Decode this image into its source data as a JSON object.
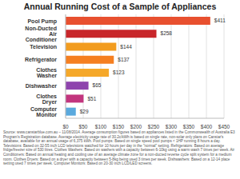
{
  "chart_data": {
    "type": "bar",
    "title": "Annual Running Cost of a Sample of Appliances",
    "orientation": "horizontal",
    "categories": [
      "Pool Pump",
      "Non-Ducted Air Conditioner",
      "Television",
      "Refrigerator",
      "Clothes Washer",
      "Dishwasher",
      "Clothes Dryer",
      "Computer Monitor"
    ],
    "values": [
      411,
      258,
      144,
      137,
      123,
      65,
      51,
      29
    ],
    "value_labels": [
      "$411",
      "$258",
      "$144",
      "$137",
      "$123",
      "$65",
      "$51",
      "$29"
    ],
    "colors": [
      "#e8502f",
      "#c8262a",
      "#f29c1f",
      "#f57f20",
      "#f5a82a",
      "#8e44ad",
      "#c2357e",
      "#5aa9dd"
    ],
    "data_labels": true,
    "grid": true,
    "xlim": [
      0,
      450
    ],
    "xticks": [
      {
        "value": 0,
        "label": "$0"
      },
      {
        "value": 50,
        "label": "$50"
      },
      {
        "value": 100,
        "label": "$100"
      },
      {
        "value": 150,
        "label": "$150"
      },
      {
        "value": 200,
        "label": "$200"
      },
      {
        "value": 250,
        "label": "$250"
      },
      {
        "value": 300,
        "label": "$300"
      },
      {
        "value": 350,
        "label": "$350"
      },
      {
        "value": 400,
        "label": "$400"
      },
      {
        "value": 450,
        "label": "$450"
      }
    ],
    "source_note": "Source: www.canstarblue.com.au – 11/08/2014. Average consumption figures based on appliances listed in the Commonwealth of Australia E3 Program's Registration database. Average electricity usage rate of 30.2c/kWh is based on single rate, non-solar only plans on Canstar's database, available for an annual usage of 6,375 kWh. Pool pumps: Based on single speed pool pumps < 1HP running 8 hours a day. Televisions: Based on 32-55 inch LCD televisions watched for 10 hours per day in the \"normal\" setting. Refrigerators: Based on average fridge/freezer size of 530 litres. Clothes Washers: Based on washers with a capacity between 6-10kg using a warm wash 7 times per week. Air Conditioners: Based on annual heating and cooling use of an average climate zone for a non-ducted reverse cycle split system for a medium room. Clothes Dryers: Based on a dryer with a capacity between 5-8kg being used 3 times per week. Dishwashers: Based on a 12-14 place setting used 7 times per week. Computer Monitors: Based on 20-30 inch LCD/LED screens."
  }
}
